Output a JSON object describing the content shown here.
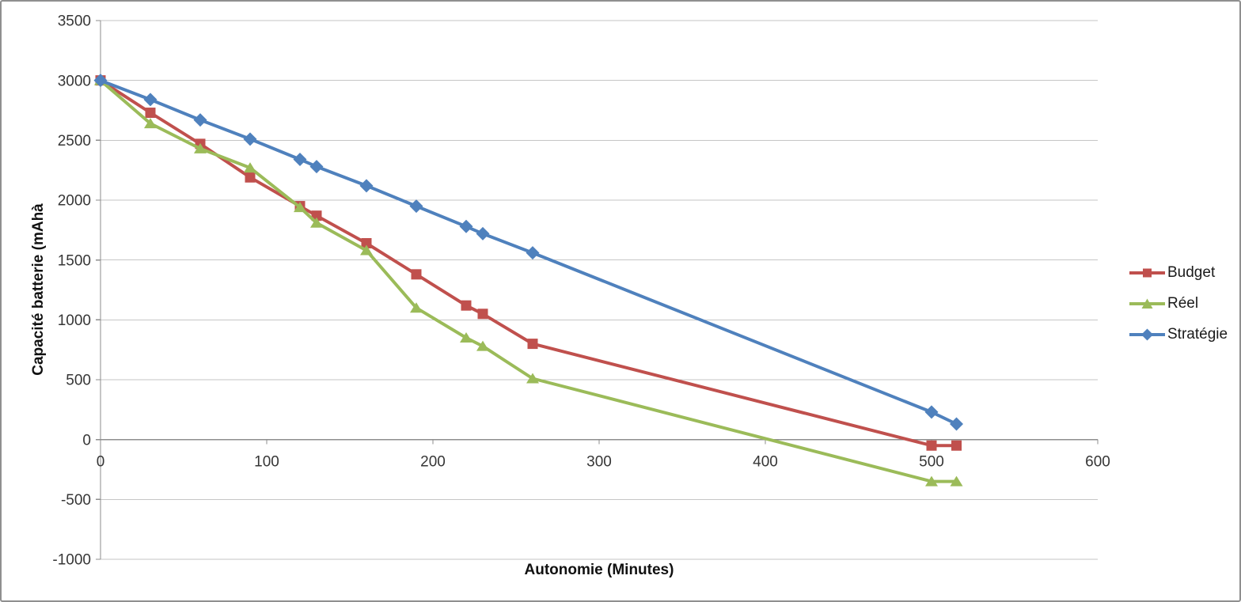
{
  "chart_data": {
    "type": "line",
    "title": "",
    "xlabel": "Autonomie (Minutes)",
    "ylabel": "Capacité batterie (mAhà",
    "x": [
      0,
      30,
      60,
      90,
      120,
      130,
      160,
      190,
      220,
      230,
      260,
      500,
      515
    ],
    "series": [
      {
        "name": "Budget",
        "marker": "square",
        "color": "#C0504D",
        "values": [
          3000,
          2730,
          2470,
          2190,
          1950,
          1870,
          1640,
          1380,
          1120,
          1050,
          800,
          -50,
          -50
        ]
      },
      {
        "name": "Réel",
        "marker": "triangle",
        "color": "#9BBB59",
        "values": [
          3000,
          2640,
          2430,
          2270,
          1940,
          1810,
          1580,
          1100,
          850,
          780,
          510,
          -350,
          -350
        ]
      },
      {
        "name": "Stratégie",
        "marker": "diamond",
        "color": "#4F81BD",
        "values": [
          3000,
          2840,
          2670,
          2510,
          2340,
          2280,
          2120,
          1950,
          1780,
          1720,
          1560,
          230,
          130
        ]
      }
    ],
    "xlim": [
      0,
      600
    ],
    "ylim": [
      -1000,
      3500
    ],
    "x_ticks": [
      0,
      100,
      200,
      300,
      400,
      500,
      600
    ],
    "y_ticks": [
      3500,
      3000,
      2500,
      2000,
      1500,
      1000,
      500,
      0,
      -500,
      -1000
    ],
    "grid": "horizontal-only",
    "legend_position": "right",
    "colors": {
      "gridline": "#C6C6C6",
      "axis": "#8E8E8E",
      "frame": "#8F8F8F"
    }
  }
}
